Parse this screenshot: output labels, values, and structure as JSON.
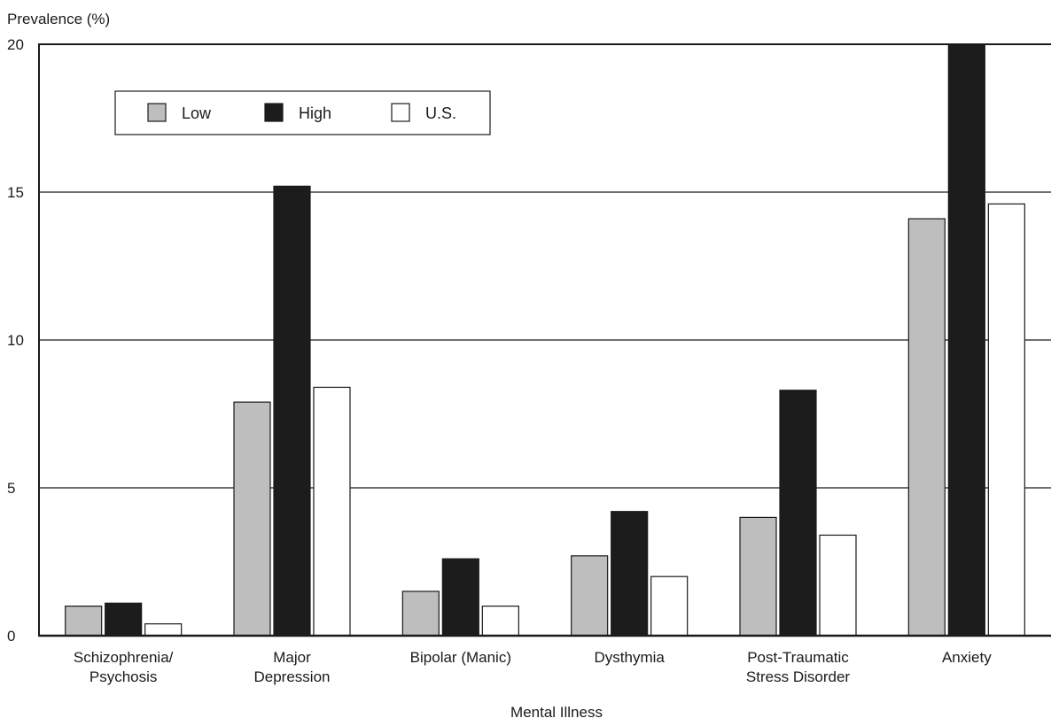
{
  "chart_data": {
    "type": "bar",
    "title": "",
    "ylabel": "Prevalence (%)",
    "xlabel": "Mental Illness",
    "ylim": [
      0,
      20
    ],
    "yticks": [
      0,
      5,
      10,
      15,
      20
    ],
    "grid": true,
    "legend_position": "top-left",
    "categories": [
      [
        "Schizophrenia/",
        "Psychosis"
      ],
      [
        "Major",
        "Depression"
      ],
      [
        "Bipolar (Manic)"
      ],
      [
        "Dysthymia"
      ],
      [
        "Post-Traumatic",
        "Stress Disorder"
      ],
      [
        "Anxiety"
      ]
    ],
    "series": [
      {
        "name": "Low",
        "color": "#bebebe",
        "values": [
          1.0,
          7.9,
          1.5,
          2.7,
          4.0,
          14.1
        ]
      },
      {
        "name": "High",
        "color": "#1c1c1c",
        "values": [
          1.1,
          15.2,
          2.6,
          4.2,
          8.3,
          20.0
        ]
      },
      {
        "name": "U.S.",
        "color": "#ffffff",
        "values": [
          0.4,
          8.4,
          1.0,
          2.0,
          3.4,
          14.6
        ]
      }
    ]
  }
}
